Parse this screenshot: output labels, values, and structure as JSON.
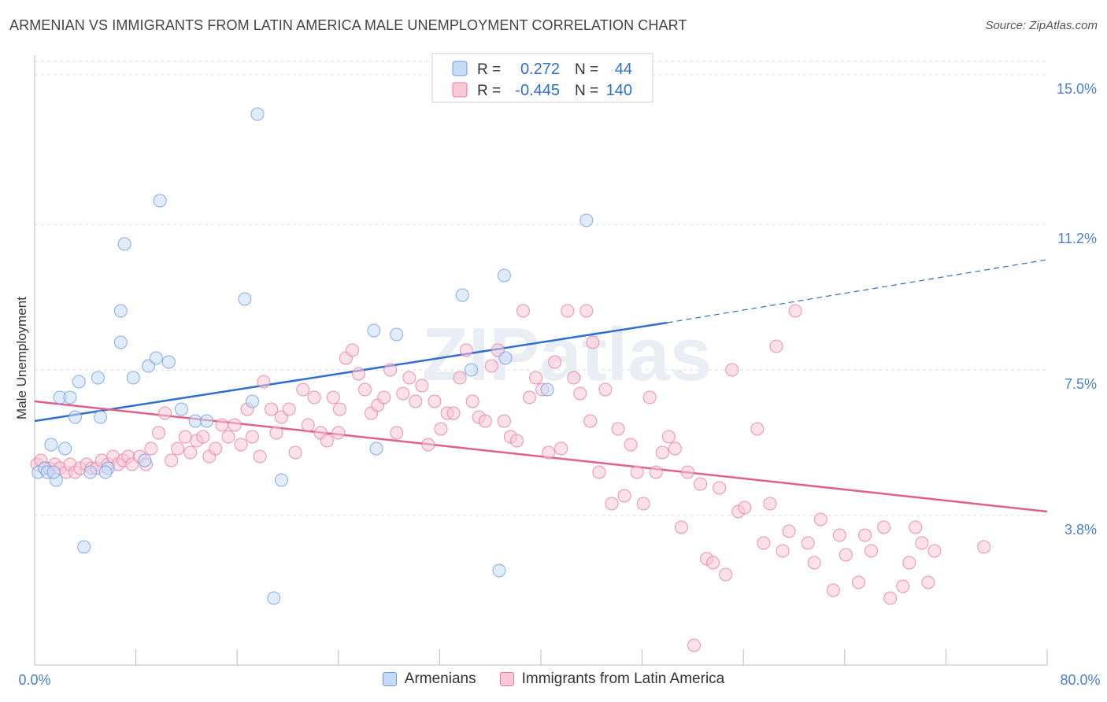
{
  "title": "ARMENIAN VS IMMIGRANTS FROM LATIN AMERICA MALE UNEMPLOYMENT CORRELATION CHART",
  "source": "Source: ZipAtlas.com",
  "watermark": "ZIPatlas",
  "chart_data": {
    "type": "scatter",
    "ylabel": "Male Unemployment",
    "xlim": [
      0,
      80
    ],
    "ylim": [
      0,
      15.5
    ],
    "x_tick_labels": [
      "0.0%",
      "80.0%"
    ],
    "y_ticks": [
      {
        "value": 3.8,
        "label": "3.8%"
      },
      {
        "value": 7.5,
        "label": "7.5%"
      },
      {
        "value": 11.2,
        "label": "11.2%"
      },
      {
        "value": 15.0,
        "label": "15.0%"
      }
    ],
    "legend_position": "top-center",
    "series": [
      {
        "name": "Armenians",
        "color": "#6b9be0",
        "fill": "#c6dbf7",
        "r_label": "R =",
        "r_value": "0.272",
        "n_label": "N =",
        "n_value": "44",
        "trend": {
          "x0": 0,
          "y0": 6.2,
          "x1": 50,
          "y1": 8.7,
          "dashed_to_x": 80,
          "dashed_to_y": 10.3
        },
        "points": [
          [
            0.3,
            4.9
          ],
          [
            0.8,
            5.0
          ],
          [
            1.0,
            4.9
          ],
          [
            1.3,
            5.6
          ],
          [
            1.7,
            4.7
          ],
          [
            2.4,
            5.5
          ],
          [
            2.0,
            6.8
          ],
          [
            2.8,
            6.8
          ],
          [
            3.2,
            6.3
          ],
          [
            3.5,
            7.2
          ],
          [
            3.9,
            3.0
          ],
          [
            4.4,
            4.9
          ],
          [
            5.0,
            7.3
          ],
          [
            5.2,
            6.3
          ],
          [
            5.8,
            5.0
          ],
          [
            6.8,
            8.2
          ],
          [
            6.8,
            9.0
          ],
          [
            7.1,
            10.7
          ],
          [
            7.8,
            7.3
          ],
          [
            8.7,
            5.2
          ],
          [
            9.0,
            7.6
          ],
          [
            9.6,
            7.8
          ],
          [
            9.9,
            11.8
          ],
          [
            10.6,
            7.7
          ],
          [
            11.6,
            6.5
          ],
          [
            12.7,
            6.2
          ],
          [
            13.6,
            6.2
          ],
          [
            16.6,
            9.3
          ],
          [
            17.2,
            6.7
          ],
          [
            17.6,
            14.0
          ],
          [
            18.9,
            1.7
          ],
          [
            19.5,
            4.7
          ],
          [
            26.8,
            8.5
          ],
          [
            27.0,
            5.5
          ],
          [
            28.6,
            8.4
          ],
          [
            33.8,
            9.4
          ],
          [
            34.5,
            7.5
          ],
          [
            36.7,
            2.4
          ],
          [
            37.1,
            9.9
          ],
          [
            37.2,
            7.8
          ],
          [
            40.5,
            7.0
          ],
          [
            43.6,
            11.3
          ],
          [
            5.6,
            4.9
          ],
          [
            1.5,
            4.9
          ]
        ]
      },
      {
        "name": "Immigrants from Latin America",
        "color": "#e8799c",
        "fill": "#f9c9d7",
        "r_label": "R =",
        "r_value": "-0.445",
        "n_label": "N =",
        "n_value": "140",
        "trend": {
          "x0": 0,
          "y0": 6.7,
          "x1": 80,
          "y1": 3.9
        },
        "points": [
          [
            0.2,
            5.1
          ],
          [
            0.5,
            5.2
          ],
          [
            0.8,
            5.0
          ],
          [
            1.2,
            5.0
          ],
          [
            1.6,
            5.1
          ],
          [
            2.0,
            5.0
          ],
          [
            2.5,
            4.9
          ],
          [
            2.8,
            5.1
          ],
          [
            3.2,
            4.9
          ],
          [
            3.6,
            5.0
          ],
          [
            4.1,
            5.1
          ],
          [
            4.5,
            5.0
          ],
          [
            4.9,
            5.0
          ],
          [
            5.3,
            5.2
          ],
          [
            5.8,
            5.1
          ],
          [
            6.2,
            5.3
          ],
          [
            6.6,
            5.1
          ],
          [
            7.0,
            5.2
          ],
          [
            7.4,
            5.3
          ],
          [
            7.7,
            5.1
          ],
          [
            8.3,
            5.3
          ],
          [
            8.8,
            5.1
          ],
          [
            9.2,
            5.5
          ],
          [
            9.8,
            5.9
          ],
          [
            10.3,
            6.4
          ],
          [
            10.8,
            5.2
          ],
          [
            11.3,
            5.5
          ],
          [
            11.9,
            5.8
          ],
          [
            12.3,
            5.4
          ],
          [
            12.8,
            5.7
          ],
          [
            13.3,
            5.8
          ],
          [
            13.8,
            5.3
          ],
          [
            14.3,
            5.5
          ],
          [
            14.8,
            6.1
          ],
          [
            15.3,
            5.8
          ],
          [
            15.8,
            6.1
          ],
          [
            16.3,
            5.6
          ],
          [
            16.8,
            6.5
          ],
          [
            17.2,
            5.8
          ],
          [
            17.8,
            5.3
          ],
          [
            18.1,
            7.2
          ],
          [
            18.7,
            6.5
          ],
          [
            19.1,
            5.9
          ],
          [
            19.5,
            6.3
          ],
          [
            20.1,
            6.5
          ],
          [
            20.6,
            5.4
          ],
          [
            21.2,
            7.0
          ],
          [
            21.6,
            6.1
          ],
          [
            22.1,
            6.8
          ],
          [
            22.6,
            5.9
          ],
          [
            23.1,
            5.7
          ],
          [
            23.6,
            6.8
          ],
          [
            24.1,
            6.5
          ],
          [
            24.6,
            7.8
          ],
          [
            25.1,
            8.0
          ],
          [
            25.6,
            7.4
          ],
          [
            26.1,
            7.0
          ],
          [
            26.6,
            6.4
          ],
          [
            27.1,
            6.6
          ],
          [
            27.6,
            6.8
          ],
          [
            28.1,
            7.5
          ],
          [
            28.6,
            5.9
          ],
          [
            29.1,
            6.9
          ],
          [
            29.6,
            7.3
          ],
          [
            30.1,
            6.7
          ],
          [
            30.6,
            7.1
          ],
          [
            31.1,
            5.6
          ],
          [
            31.6,
            6.7
          ],
          [
            32.1,
            6.0
          ],
          [
            32.6,
            6.4
          ],
          [
            33.1,
            6.4
          ],
          [
            33.6,
            7.3
          ],
          [
            34.1,
            8.0
          ],
          [
            34.6,
            6.7
          ],
          [
            35.1,
            6.3
          ],
          [
            35.6,
            6.2
          ],
          [
            36.1,
            7.6
          ],
          [
            36.6,
            8.0
          ],
          [
            37.1,
            6.2
          ],
          [
            37.6,
            5.8
          ],
          [
            38.1,
            5.7
          ],
          [
            38.6,
            9.0
          ],
          [
            39.1,
            6.8
          ],
          [
            39.6,
            7.3
          ],
          [
            40.1,
            7.0
          ],
          [
            40.6,
            5.4
          ],
          [
            41.1,
            7.7
          ],
          [
            41.6,
            5.5
          ],
          [
            42.1,
            9.0
          ],
          [
            42.6,
            7.3
          ],
          [
            43.1,
            6.9
          ],
          [
            43.6,
            9.0
          ],
          [
            43.9,
            6.2
          ],
          [
            44.1,
            8.2
          ],
          [
            44.6,
            4.9
          ],
          [
            45.1,
            7.0
          ],
          [
            45.6,
            4.1
          ],
          [
            46.1,
            6.0
          ],
          [
            46.6,
            4.3
          ],
          [
            47.1,
            5.6
          ],
          [
            47.6,
            4.9
          ],
          [
            48.1,
            4.1
          ],
          [
            48.6,
            6.8
          ],
          [
            49.1,
            4.9
          ],
          [
            49.6,
            5.4
          ],
          [
            50.1,
            5.8
          ],
          [
            50.6,
            5.5
          ],
          [
            51.1,
            3.5
          ],
          [
            51.6,
            4.9
          ],
          [
            52.1,
            0.5
          ],
          [
            52.6,
            4.6
          ],
          [
            53.1,
            2.7
          ],
          [
            53.6,
            2.6
          ],
          [
            54.1,
            4.5
          ],
          [
            54.6,
            2.3
          ],
          [
            55.1,
            7.5
          ],
          [
            55.6,
            3.9
          ],
          [
            56.1,
            4.0
          ],
          [
            57.1,
            6.0
          ],
          [
            57.6,
            3.1
          ],
          [
            58.1,
            4.1
          ],
          [
            58.6,
            8.1
          ],
          [
            59.1,
            2.9
          ],
          [
            59.6,
            3.4
          ],
          [
            60.1,
            9.0
          ],
          [
            61.1,
            3.1
          ],
          [
            61.6,
            2.6
          ],
          [
            62.1,
            3.7
          ],
          [
            63.1,
            1.9
          ],
          [
            63.6,
            3.3
          ],
          [
            64.1,
            2.8
          ],
          [
            65.1,
            2.1
          ],
          [
            65.6,
            3.3
          ],
          [
            66.1,
            2.9
          ],
          [
            67.1,
            3.5
          ],
          [
            67.6,
            1.7
          ],
          [
            68.6,
            2.0
          ],
          [
            69.1,
            2.6
          ],
          [
            69.6,
            3.5
          ],
          [
            70.1,
            3.1
          ],
          [
            70.6,
            2.1
          ],
          [
            71.1,
            2.9
          ],
          [
            75.0,
            3.0
          ],
          [
            24.0,
            5.9
          ]
        ]
      }
    ]
  }
}
